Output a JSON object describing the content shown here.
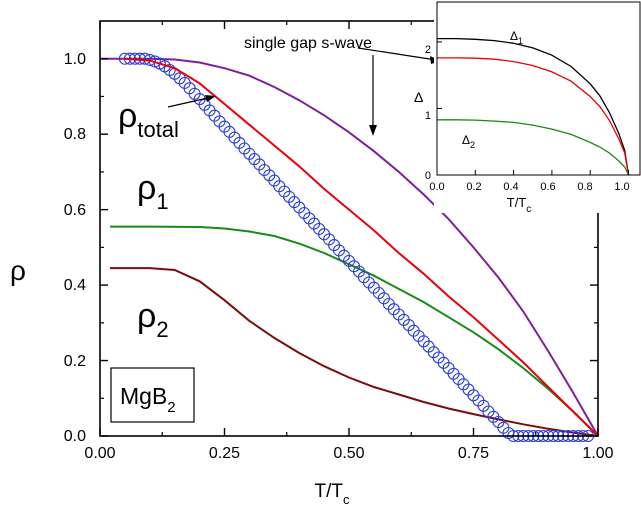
{
  "main_plot": {
    "xlabel": "T/T",
    "xlabel_sub": "c",
    "ylabel": "ρ",
    "xticks": [
      "0.00",
      "0.25",
      "0.50",
      "0.75",
      "1.00"
    ],
    "yticks": [
      "0.0",
      "0.2",
      "0.4",
      "0.6",
      "0.8",
      "1.0"
    ],
    "labels": {
      "rho_total": "ρ",
      "rho_total_sub": "total",
      "rho1": "ρ",
      "rho1_sub": "1",
      "rho2": "ρ",
      "rho2_sub": "2",
      "single_gap": "single gap s-wave",
      "box_main": "MgB",
      "box_sub": "2"
    }
  },
  "inset": {
    "xlabel": "T/T",
    "xlabel_sub": "c",
    "ylabel": "Δ",
    "xticks": [
      "0.0",
      "0.2",
      "0.4",
      "0.6",
      "0.8",
      "1.0"
    ],
    "yticks": [
      "0",
      "1",
      "2"
    ],
    "labels": {
      "delta1": "Δ",
      "delta1_sub": "1",
      "delta2": "Δ",
      "delta2_sub": "2"
    }
  },
  "colors": {
    "data_points": "#2a3fd6",
    "fit": "#e8000b",
    "single_gap": "#7f1f97",
    "rho1": "#178a17",
    "rho2": "#7a0d0d",
    "delta1": "#000000",
    "delta_total": "#e8000b",
    "delta2": "#178a17"
  },
  "chart_data": [
    {
      "type": "line",
      "xlim": [
        0,
        1
      ],
      "ylim": [
        0,
        1.1
      ],
      "grid": false,
      "series": [
        {
          "name": "ρtotal",
          "x": [
            0.05,
            0.1,
            0.15,
            0.2,
            0.25,
            0.3,
            0.35,
            0.4,
            0.45,
            0.5,
            0.55,
            0.6,
            0.65,
            0.7,
            0.75,
            0.8,
            0.85,
            0.9,
            0.95,
            1.0
          ],
          "y": [
            1.0,
            0.995,
            0.975,
            0.935,
            0.88,
            0.825,
            0.77,
            0.715,
            0.655,
            0.6,
            0.545,
            0.485,
            0.43,
            0.37,
            0.315,
            0.255,
            0.195,
            0.13,
            0.065,
            0.0
          ]
        },
        {
          "name": "single gap s-wave",
          "x": [
            0.0,
            0.05,
            0.1,
            0.15,
            0.2,
            0.25,
            0.3,
            0.35,
            0.4,
            0.45,
            0.5,
            0.55,
            0.6,
            0.65,
            0.7,
            0.75,
            0.8,
            0.85,
            0.9,
            0.95,
            1.0
          ],
          "y": [
            1.0,
            1.0,
            1.0,
            0.998,
            0.99,
            0.975,
            0.955,
            0.925,
            0.89,
            0.85,
            0.805,
            0.755,
            0.7,
            0.64,
            0.575,
            0.5,
            0.42,
            0.33,
            0.225,
            0.115,
            0.0
          ]
        },
        {
          "name": "ρ1",
          "x": [
            0.02,
            0.1,
            0.2,
            0.25,
            0.3,
            0.35,
            0.4,
            0.45,
            0.5,
            0.55,
            0.6,
            0.65,
            0.7,
            0.75,
            0.8,
            0.85,
            0.9,
            0.95,
            1.0
          ],
          "y": [
            0.555,
            0.555,
            0.554,
            0.55,
            0.542,
            0.53,
            0.51,
            0.485,
            0.455,
            0.425,
            0.39,
            0.355,
            0.315,
            0.275,
            0.23,
            0.18,
            0.125,
            0.065,
            0.0
          ]
        },
        {
          "name": "ρ2",
          "x": [
            0.02,
            0.1,
            0.15,
            0.2,
            0.25,
            0.3,
            0.35,
            0.4,
            0.45,
            0.5,
            0.55,
            0.6,
            0.65,
            0.7,
            0.75,
            0.8,
            0.85,
            0.9,
            0.95,
            1.0
          ],
          "y": [
            0.445,
            0.445,
            0.44,
            0.41,
            0.36,
            0.305,
            0.26,
            0.22,
            0.185,
            0.155,
            0.13,
            0.11,
            0.09,
            0.073,
            0.058,
            0.044,
            0.031,
            0.019,
            0.009,
            0.0
          ]
        }
      ],
      "points": {
        "name": "data",
        "x": [
          0.05,
          0.06,
          0.07,
          0.08,
          0.09,
          0.1,
          0.11,
          0.12,
          0.13,
          0.14,
          0.15,
          0.16,
          0.17,
          0.18,
          0.19,
          0.2,
          0.21,
          0.22,
          0.23,
          0.24,
          0.25,
          0.26,
          0.27,
          0.28,
          0.29,
          0.3,
          0.31,
          0.32,
          0.33,
          0.34,
          0.35,
          0.36,
          0.37,
          0.38,
          0.39,
          0.4,
          0.41,
          0.42,
          0.43,
          0.44,
          0.45,
          0.46,
          0.47,
          0.48,
          0.49,
          0.5,
          0.51,
          0.52,
          0.53,
          0.54,
          0.55,
          0.56,
          0.57,
          0.58,
          0.59,
          0.6,
          0.61,
          0.62,
          0.63,
          0.64,
          0.65,
          0.66,
          0.67,
          0.68,
          0.69,
          0.7,
          0.71,
          0.72,
          0.73,
          0.74,
          0.75,
          0.76,
          0.77,
          0.78,
          0.79,
          0.8,
          0.81,
          0.82,
          0.83,
          0.84,
          0.85,
          0.86,
          0.87,
          0.88,
          0.89,
          0.9,
          0.91,
          0.92,
          0.93,
          0.94,
          0.95,
          0.96,
          0.97,
          0.98
        ],
        "y": [
          1.0,
          1.0,
          1.0,
          1.0,
          1.0,
          0.997,
          0.993,
          0.987,
          0.98,
          0.97,
          0.96,
          0.948,
          0.936,
          0.922,
          0.907,
          0.893,
          0.878,
          0.863,
          0.849,
          0.834,
          0.82,
          0.806,
          0.791,
          0.777,
          0.762,
          0.748,
          0.734,
          0.72,
          0.705,
          0.691,
          0.677,
          0.662,
          0.648,
          0.634,
          0.62,
          0.606,
          0.591,
          0.577,
          0.563,
          0.549,
          0.535,
          0.521,
          0.506,
          0.492,
          0.478,
          0.464,
          0.45,
          0.436,
          0.421,
          0.407,
          0.393,
          0.379,
          0.365,
          0.35,
          0.336,
          0.322,
          0.308,
          0.294,
          0.279,
          0.265,
          0.251,
          0.237,
          0.222,
          0.208,
          0.194,
          0.18,
          0.165,
          0.151,
          0.137,
          0.123,
          0.108,
          0.094,
          0.08,
          0.065,
          0.051,
          0.037,
          0.022,
          0.008,
          0.0,
          0.0,
          0.0,
          0.0,
          0.0,
          0.0,
          0.0,
          0.0,
          0.0,
          0.0,
          0.0,
          0.0,
          0.0,
          0.0,
          0.0,
          0.0
        ]
      }
    },
    {
      "type": "line",
      "xlim": [
        0,
        1.06
      ],
      "ylim": [
        0,
        2.6
      ],
      "grid": false,
      "series": [
        {
          "name": "Δ1",
          "x": [
            0.0,
            0.1,
            0.2,
            0.3,
            0.4,
            0.5,
            0.6,
            0.7,
            0.8,
            0.85,
            0.9,
            0.95,
            0.98,
            1.0
          ],
          "y": [
            2.05,
            2.05,
            2.04,
            2.02,
            1.98,
            1.91,
            1.8,
            1.63,
            1.37,
            1.19,
            0.94,
            0.62,
            0.37,
            0.0
          ]
        },
        {
          "name": "Δ",
          "x": [
            0.0,
            0.1,
            0.2,
            0.3,
            0.4,
            0.5,
            0.6,
            0.7,
            0.8,
            0.85,
            0.9,
            0.95,
            0.98,
            1.0
          ],
          "y": [
            1.76,
            1.76,
            1.755,
            1.74,
            1.705,
            1.645,
            1.55,
            1.41,
            1.18,
            1.03,
            0.82,
            0.54,
            0.33,
            0.0
          ]
        },
        {
          "name": "Δ2",
          "x": [
            0.0,
            0.1,
            0.2,
            0.3,
            0.4,
            0.5,
            0.6,
            0.7,
            0.8,
            0.85,
            0.9,
            0.95,
            0.98,
            1.0
          ],
          "y": [
            0.83,
            0.83,
            0.825,
            0.81,
            0.79,
            0.75,
            0.69,
            0.61,
            0.49,
            0.42,
            0.33,
            0.21,
            0.12,
            0.0
          ]
        }
      ]
    }
  ]
}
